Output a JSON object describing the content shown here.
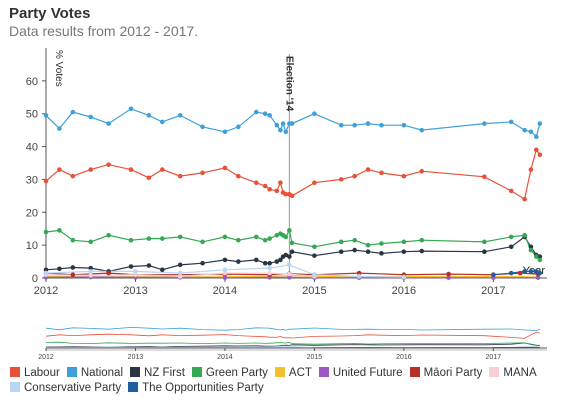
{
  "title": "Party Votes",
  "subtitle": "Data results from 2012 - 2017.",
  "chart_data": {
    "type": "line",
    "ylabel": "% Votes",
    "xlabel": "Year",
    "ylim": [
      0,
      70
    ],
    "yticks": [
      0,
      10,
      20,
      30,
      40,
      50,
      60
    ],
    "xlim": [
      2012,
      2017.6
    ],
    "xticks": [
      {
        "value": 2012,
        "label": "2012"
      },
      {
        "value": 2013,
        "label": "2013"
      },
      {
        "value": 2014,
        "label": "2014"
      },
      {
        "value": 2015,
        "label": "2015"
      },
      {
        "value": 2016,
        "label": "2016"
      },
      {
        "value": 2017,
        "label": "2017"
      }
    ],
    "annotation": {
      "label": "Election '14",
      "x": 2014.72
    },
    "series": [
      {
        "name": "Labour",
        "color": "#e8503a",
        "x": [
          2012.0,
          2012.15,
          2012.3,
          2012.5,
          2012.7,
          2012.95,
          2013.15,
          2013.3,
          2013.5,
          2013.75,
          2014.0,
          2014.15,
          2014.35,
          2014.45,
          2014.5,
          2014.58,
          2014.62,
          2014.65,
          2014.68,
          2014.72,
          2014.75,
          2015.0,
          2015.3,
          2015.45,
          2015.6,
          2015.75,
          2016.0,
          2016.2,
          2016.9,
          2017.2,
          2017.35,
          2017.42,
          2017.48,
          2017.52
        ],
        "values": [
          29.5,
          33,
          31,
          33,
          34.5,
          33,
          30.5,
          33,
          31,
          32,
          33.5,
          31,
          29,
          28,
          27,
          26.5,
          29,
          26,
          25.5,
          25.5,
          25,
          29,
          30,
          31,
          33,
          32,
          31,
          32.5,
          30.8,
          26.5,
          24,
          33,
          39,
          37.5
        ]
      },
      {
        "name": "National",
        "color": "#3ea0d8",
        "x": [
          2012.0,
          2012.15,
          2012.3,
          2012.5,
          2012.7,
          2012.95,
          2013.15,
          2013.3,
          2013.5,
          2013.75,
          2014.0,
          2014.15,
          2014.35,
          2014.45,
          2014.5,
          2014.58,
          2014.62,
          2014.65,
          2014.68,
          2014.72,
          2014.75,
          2015.0,
          2015.3,
          2015.45,
          2015.6,
          2015.75,
          2016.0,
          2016.2,
          2016.9,
          2017.2,
          2017.35,
          2017.42,
          2017.48,
          2017.52
        ],
        "values": [
          49.5,
          45.5,
          50.5,
          49,
          47,
          51.5,
          49.5,
          47.5,
          49.5,
          46,
          44.5,
          46,
          50.5,
          50,
          49.5,
          46.5,
          45,
          47,
          44.5,
          47,
          47,
          50,
          46.5,
          46.5,
          47,
          46.5,
          46.5,
          45,
          47,
          47.5,
          45,
          44.5,
          43,
          47
        ]
      },
      {
        "name": "NZ First",
        "color": "#2b3544",
        "x": [
          2012.0,
          2012.15,
          2012.3,
          2012.5,
          2012.7,
          2012.95,
          2013.15,
          2013.3,
          2013.5,
          2013.75,
          2014.0,
          2014.15,
          2014.35,
          2014.45,
          2014.5,
          2014.58,
          2014.62,
          2014.65,
          2014.68,
          2014.72,
          2014.75,
          2015.0,
          2015.3,
          2015.45,
          2015.6,
          2015.75,
          2016.0,
          2016.2,
          2016.9,
          2017.2,
          2017.35,
          2017.42,
          2017.48,
          2017.52
        ],
        "values": [
          2.5,
          2.8,
          3.2,
          3,
          2,
          3.5,
          3.8,
          2.5,
          4,
          4.5,
          5.5,
          5,
          5.5,
          4.5,
          4.5,
          5,
          5.5,
          6.5,
          7,
          6.5,
          8,
          6.8,
          8,
          8.5,
          8,
          7.5,
          8,
          8.2,
          8,
          9.5,
          12.5,
          9.5,
          7,
          6.5
        ]
      },
      {
        "name": "Green Party",
        "color": "#34a853",
        "x": [
          2012.0,
          2012.15,
          2012.3,
          2012.5,
          2012.7,
          2012.95,
          2013.15,
          2013.3,
          2013.5,
          2013.75,
          2014.0,
          2014.15,
          2014.35,
          2014.45,
          2014.5,
          2014.58,
          2014.62,
          2014.65,
          2014.68,
          2014.72,
          2014.75,
          2015.0,
          2015.3,
          2015.45,
          2015.6,
          2015.75,
          2016.0,
          2016.2,
          2016.9,
          2017.2,
          2017.35,
          2017.42,
          2017.48,
          2017.52
        ],
        "values": [
          14,
          14.5,
          11.5,
          11,
          13,
          11.5,
          12,
          12,
          12.5,
          11,
          12.5,
          11.5,
          12.5,
          11.5,
          12,
          13,
          13.5,
          13,
          12.5,
          14.5,
          10.7,
          9.5,
          11,
          11.5,
          10,
          10.5,
          11,
          11.5,
          11,
          12.5,
          13,
          8.5,
          6.5,
          5.5
        ]
      },
      {
        "name": "ACT",
        "color": "#f2c02c",
        "x": [
          2012.0,
          2012.5,
          2013.0,
          2013.5,
          2014.0,
          2014.5,
          2014.72,
          2015.0,
          2015.5,
          2016.0,
          2016.5,
          2017.0,
          2017.5
        ],
        "values": [
          0.5,
          0.3,
          0.4,
          0.3,
          0.4,
          0.5,
          0.7,
          0.5,
          0.3,
          0.5,
          0.4,
          0.5,
          0.3
        ]
      },
      {
        "name": "United Future",
        "color": "#9b59c8",
        "x": [
          2012.0,
          2012.5,
          2013.0,
          2013.5,
          2014.0,
          2014.5,
          2014.72,
          2015.0,
          2015.5,
          2016.0,
          2016.5,
          2017.0,
          2017.5
        ],
        "values": [
          0.2,
          0.3,
          0.2,
          0.2,
          0.1,
          0.2,
          0.2,
          0.1,
          0.1,
          0.1,
          0.1,
          0.1,
          0.1
        ]
      },
      {
        "name": "Māori Party",
        "color": "#b83025",
        "x": [
          2012.0,
          2012.3,
          2012.7,
          2013.0,
          2013.5,
          2014.0,
          2014.5,
          2014.72,
          2015.0,
          2015.5,
          2016.0,
          2016.5,
          2017.0,
          2017.3,
          2017.5
        ],
        "values": [
          1.5,
          1,
          1.5,
          1,
          1,
          1.2,
          1,
          1.3,
          1,
          1.5,
          1,
          1.2,
          1,
          1.5,
          1.2
        ]
      },
      {
        "name": "MANA",
        "color": "#f7cfd4",
        "x": [
          2012.0,
          2012.5,
          2013.0,
          2013.5,
          2014.0,
          2014.5,
          2014.72,
          2015.0
        ],
        "values": [
          1,
          0.8,
          1,
          0.5,
          1.5,
          1.5,
          1.2,
          0.5
        ]
      },
      {
        "name": "Conservative Party",
        "color": "#b9d6f2",
        "x": [
          2012.0,
          2012.5,
          2013.0,
          2013.5,
          2014.0,
          2014.5,
          2014.72,
          2015.0,
          2015.5,
          2016.0
        ],
        "values": [
          1.5,
          2,
          2,
          1.5,
          2.5,
          3,
          4,
          1,
          0.5,
          0.3
        ]
      },
      {
        "name": "The Opportunities Party",
        "color": "#1f5f9e",
        "x": [
          2017.0,
          2017.2,
          2017.35,
          2017.42,
          2017.48,
          2017.52
        ],
        "values": [
          1,
          1.5,
          2,
          2,
          2,
          1.5
        ]
      }
    ]
  }
}
